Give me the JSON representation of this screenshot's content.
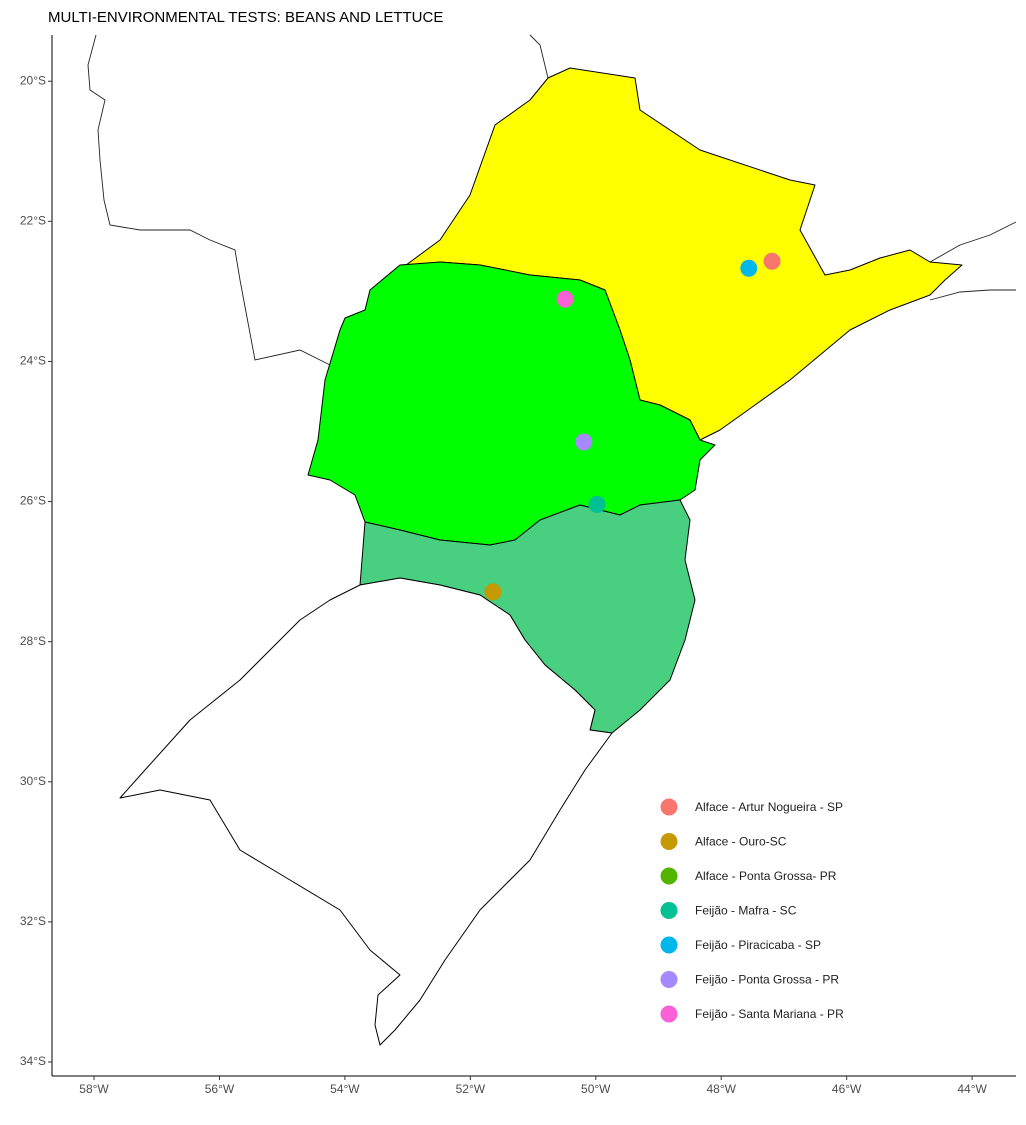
{
  "chart_data": {
    "type": "map",
    "title": "MULTI-ENVIRONMENTAL TESTS: BEANS AND LETTUCE",
    "xlim": [
      -58.67,
      -43.3
    ],
    "ylim": [
      -34.2,
      -19.34
    ],
    "xticks": [
      {
        "value": -58,
        "label": "58°W"
      },
      {
        "value": -56,
        "label": "56°W"
      },
      {
        "value": -54,
        "label": "54°W"
      },
      {
        "value": -52,
        "label": "52°W"
      },
      {
        "value": -50,
        "label": "50°W"
      },
      {
        "value": -48,
        "label": "48°W"
      },
      {
        "value": -46,
        "label": "46°W"
      },
      {
        "value": -44,
        "label": "44°W"
      }
    ],
    "yticks": [
      {
        "value": -34,
        "label": "34°S"
      },
      {
        "value": -32,
        "label": "32°S"
      },
      {
        "value": -30,
        "label": "30°S"
      },
      {
        "value": -28,
        "label": "28°S"
      },
      {
        "value": -26,
        "label": "26°S"
      },
      {
        "value": -24,
        "label": "24°S"
      },
      {
        "value": -22,
        "label": "22°S"
      },
      {
        "value": -20,
        "label": "20°S"
      }
    ],
    "series": [
      {
        "name": "Alface - Artur Nogueira - SP",
        "color": "#F8766D",
        "x": [
          -47.19
        ],
        "y": [
          -22.57
        ]
      },
      {
        "name": "Alface - Ouro-SC",
        "color": "#C49A00",
        "x": [
          -51.64
        ],
        "y": [
          -27.29
        ]
      },
      {
        "name": "Alface - Ponta Grossa- PR",
        "color": "#53B400",
        "x": [
          -50.19
        ],
        "y": [
          -25.15
        ]
      },
      {
        "name": "Feijão - Mafra - SC",
        "color": "#00C094",
        "x": [
          -49.98
        ],
        "y": [
          -26.04
        ]
      },
      {
        "name": "Feijão - Piracicaba - SP",
        "color": "#00B6EB",
        "x": [
          -47.56
        ],
        "y": [
          -22.67
        ]
      },
      {
        "name": "Feijão - Ponta Grossa - PR",
        "color": "#A58AFF",
        "x": [
          -50.19
        ],
        "y": [
          -25.15
        ]
      },
      {
        "name": "Feijão - Santa Mariana - PR",
        "color": "#FB61D7",
        "x": [
          -50.49
        ],
        "y": [
          -23.11
        ]
      }
    ]
  }
}
